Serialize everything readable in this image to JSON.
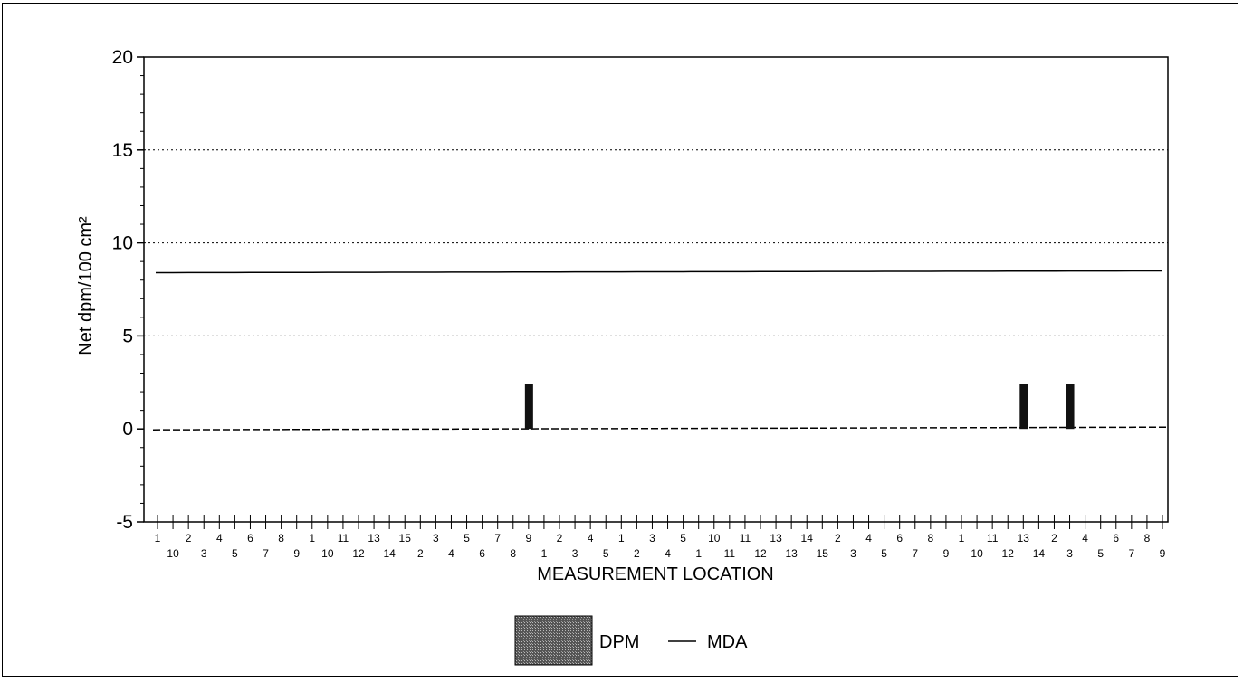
{
  "chart_data": {
    "type": "bar",
    "xlabel": "MEASUREMENT LOCATION",
    "ylabel": "Net dpm/100 cm²",
    "ylim": [
      -5,
      20
    ],
    "yticks": [
      -5,
      0,
      5,
      10,
      15,
      20
    ],
    "grid": "horizontal dotted",
    "legend": {
      "position": "bottom-center"
    },
    "categories": [
      "1",
      "10",
      "2",
      "3",
      "4",
      "5",
      "6",
      "7",
      "8",
      "9",
      "1",
      "10",
      "11",
      "12",
      "13",
      "14",
      "15",
      "2",
      "3",
      "4",
      "5",
      "6",
      "7",
      "8",
      "9",
      "1",
      "2",
      "3",
      "4",
      "5",
      "1",
      "2",
      "3",
      "4",
      "5",
      "1",
      "10",
      "11",
      "11",
      "12",
      "13",
      "13",
      "14",
      "15",
      "2",
      "3",
      "4",
      "5",
      "6",
      "7",
      "8",
      "9",
      "1",
      "10",
      "11",
      "12",
      "13",
      "14",
      "2",
      "3",
      "4",
      "5",
      "6",
      "7",
      "8",
      "9"
    ],
    "series": [
      {
        "name": "DPM",
        "kind": "bar",
        "values": [
          0,
          0,
          0,
          0,
          0,
          0,
          0,
          0,
          0,
          0,
          0,
          0,
          0,
          0,
          0,
          0,
          0,
          0,
          0,
          0,
          0,
          0,
          0,
          0,
          2.4,
          0,
          0,
          0,
          0,
          0,
          0,
          0,
          0,
          0,
          0,
          0,
          0,
          0,
          0,
          0,
          0,
          0,
          0,
          0,
          0,
          0,
          0,
          0,
          0,
          0,
          0,
          0,
          0,
          0,
          0,
          0,
          2.4,
          0,
          0,
          2.4,
          0,
          0,
          0,
          0,
          0,
          0
        ]
      },
      {
        "name": "MDA",
        "kind": "line",
        "values": [
          8.4,
          8.4,
          8.4,
          8.4,
          8.4,
          8.4,
          8.4,
          8.4,
          8.4,
          8.4,
          8.4,
          8.4,
          8.4,
          8.4,
          8.4,
          8.4,
          8.4,
          8.4,
          8.4,
          8.4,
          8.4,
          8.4,
          8.4,
          8.4,
          8.4,
          8.4,
          8.4,
          8.4,
          8.4,
          8.4,
          8.4,
          8.4,
          8.4,
          8.4,
          8.4,
          8.4,
          8.4,
          8.4,
          8.4,
          8.4,
          8.4,
          8.4,
          8.4,
          8.4,
          8.4,
          8.4,
          8.4,
          8.4,
          8.4,
          8.4,
          8.4,
          8.4,
          8.4,
          8.4,
          8.4,
          8.4,
          8.4,
          8.4,
          8.4,
          8.4,
          8.4,
          8.4,
          8.4,
          8.4,
          8.4,
          8.4
        ]
      }
    ]
  }
}
